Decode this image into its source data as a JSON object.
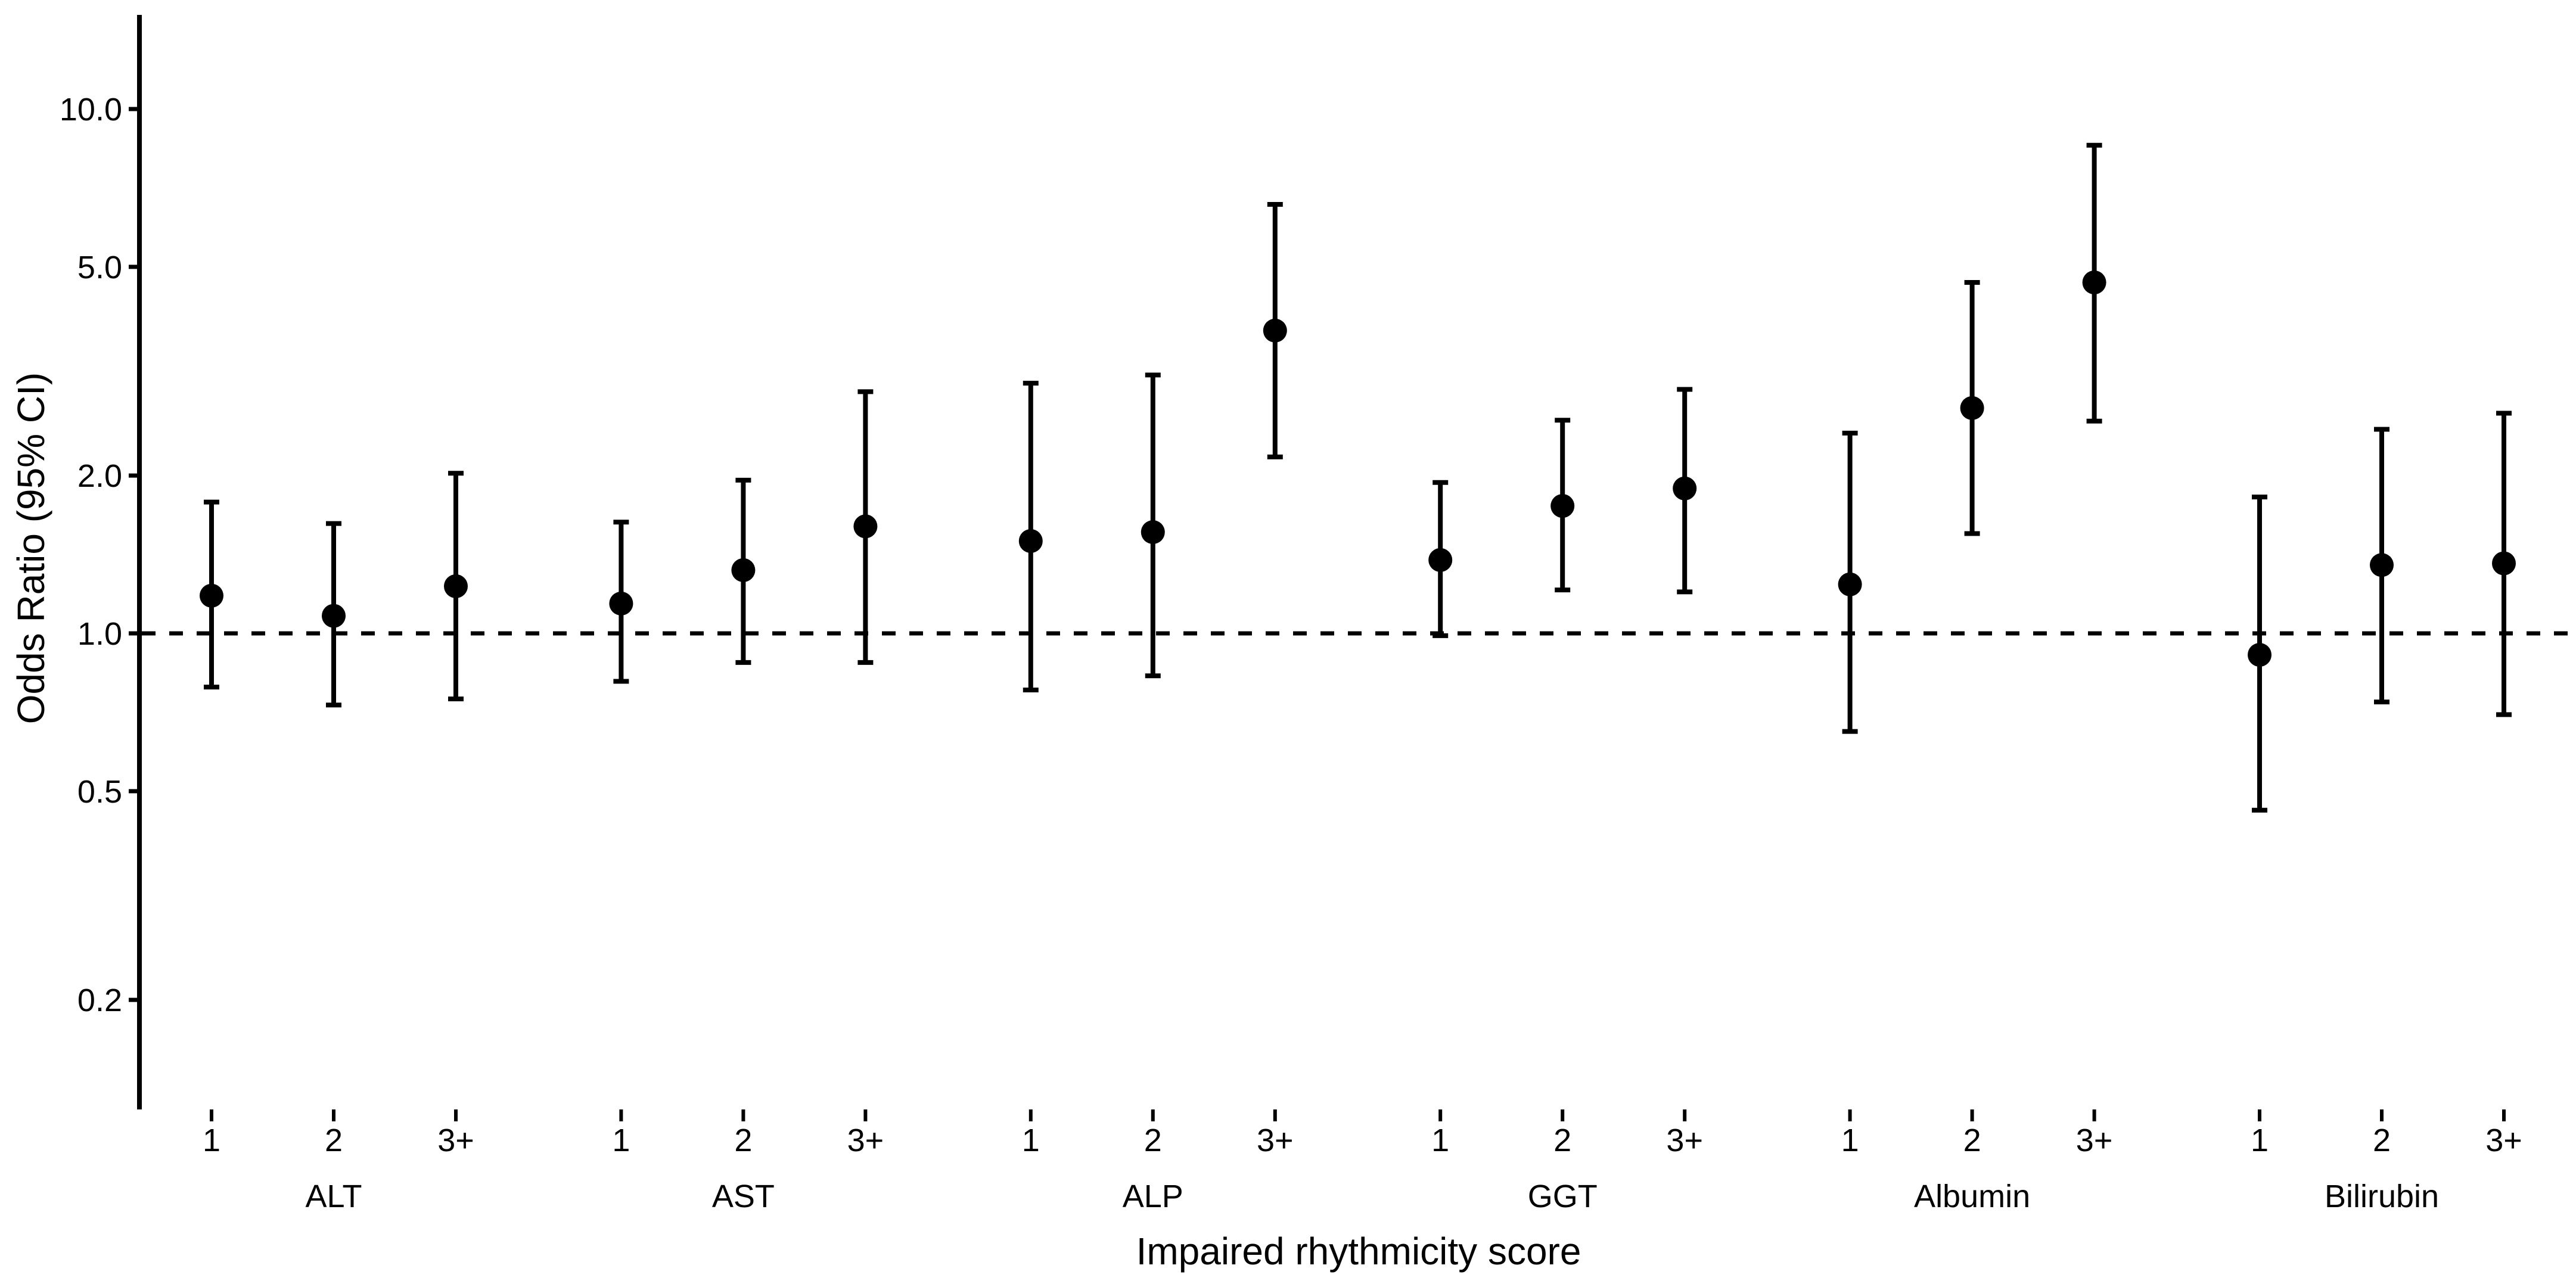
{
  "figure": {
    "background": "#ffffff",
    "foreground": "#000000"
  },
  "chart_data": {
    "type": "scatter",
    "subtype": "forest-plot-errorbars",
    "title": "",
    "xlabel": "Impaired rhythmicity score",
    "ylabel": "Odds Ratio (95% CI)",
    "y_scale": "log10",
    "ylim": [
      0.13,
      14
    ],
    "grid": "off",
    "legend": "none",
    "y_ticks": [
      10.0,
      5.0,
      2.0,
      1.0,
      0.5,
      0.2
    ],
    "y_tick_labels": [
      "10.0",
      "5.0",
      "2.0",
      "1.0",
      "0.5",
      "0.2"
    ],
    "reference_line": {
      "y": 1.0,
      "style": "dashed",
      "color": "#000000"
    },
    "x_score_labels": [
      "1",
      "2",
      "3+"
    ],
    "x_group_labels": [
      "ALT",
      "AST",
      "ALP",
      "GGT",
      "Albumin",
      "Bilirubin"
    ],
    "series": [
      {
        "group": "ALT",
        "points": [
          {
            "score": "1",
            "or": 1.18,
            "ci_low": 0.79,
            "ci_high": 1.78
          },
          {
            "score": "2",
            "or": 1.08,
            "ci_low": 0.73,
            "ci_high": 1.62
          },
          {
            "score": "3+",
            "or": 1.23,
            "ci_low": 0.75,
            "ci_high": 2.02
          }
        ]
      },
      {
        "group": "AST",
        "points": [
          {
            "score": "1",
            "or": 1.14,
            "ci_low": 0.81,
            "ci_high": 1.63
          },
          {
            "score": "2",
            "or": 1.32,
            "ci_low": 0.88,
            "ci_high": 1.96
          },
          {
            "score": "3+",
            "or": 1.6,
            "ci_low": 0.88,
            "ci_high": 2.89
          }
        ]
      },
      {
        "group": "ALP",
        "points": [
          {
            "score": "1",
            "or": 1.5,
            "ci_low": 0.78,
            "ci_high": 3.0
          },
          {
            "score": "2",
            "or": 1.56,
            "ci_low": 0.83,
            "ci_high": 3.11
          },
          {
            "score": "3+",
            "or": 3.78,
            "ci_low": 2.17,
            "ci_high": 6.58
          }
        ]
      },
      {
        "group": "GGT",
        "points": [
          {
            "score": "1",
            "or": 1.38,
            "ci_low": 0.99,
            "ci_high": 1.94
          },
          {
            "score": "2",
            "or": 1.75,
            "ci_low": 1.21,
            "ci_high": 2.55
          },
          {
            "score": "3+",
            "or": 1.89,
            "ci_low": 1.2,
            "ci_high": 2.92
          }
        ]
      },
      {
        "group": "Albumin",
        "points": [
          {
            "score": "1",
            "or": 1.24,
            "ci_low": 0.65,
            "ci_high": 2.41
          },
          {
            "score": "2",
            "or": 2.69,
            "ci_low": 1.55,
            "ci_high": 4.67
          },
          {
            "score": "3+",
            "or": 4.67,
            "ci_low": 2.54,
            "ci_high": 8.53
          }
        ]
      },
      {
        "group": "Bilirubin",
        "points": [
          {
            "score": "1",
            "or": 0.91,
            "ci_low": 0.46,
            "ci_high": 1.82
          },
          {
            "score": "2",
            "or": 1.35,
            "ci_low": 0.74,
            "ci_high": 2.45
          },
          {
            "score": "3+",
            "or": 1.36,
            "ci_low": 0.7,
            "ci_high": 2.63
          }
        ]
      }
    ]
  }
}
